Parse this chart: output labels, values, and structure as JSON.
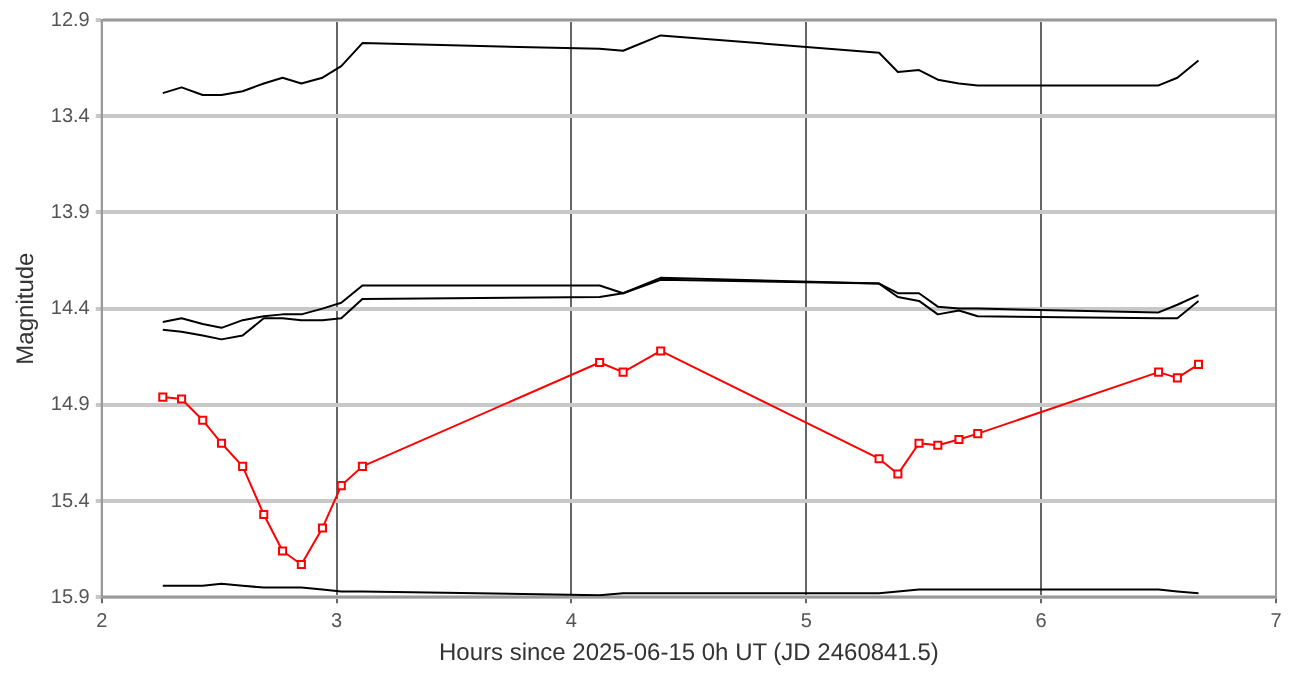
{
  "chart_data": {
    "type": "line",
    "xlabel": "Hours since 2025-06-15 0h UT (JD 2460841.5)",
    "ylabel": "Magnitude",
    "x": [
      2.26,
      2.34,
      2.43,
      2.51,
      2.6,
      2.69,
      2.77,
      2.85,
      2.94,
      3.02,
      3.11,
      4.12,
      4.22,
      4.38,
      5.31,
      5.39,
      5.48,
      5.56,
      5.65,
      5.73,
      6.5,
      6.58,
      6.67
    ],
    "series": [
      {
        "color": "#000000",
        "marker": "none",
        "values": [
          13.28,
          13.25,
          13.29,
          13.29,
          13.27,
          13.23,
          13.2,
          13.23,
          13.2,
          13.14,
          13.02,
          13.05,
          13.06,
          12.98,
          13.07,
          13.17,
          13.16,
          13.21,
          13.23,
          13.24,
          13.24,
          13.2,
          13.11
        ]
      },
      {
        "color": "#000000",
        "marker": "none",
        "values": [
          14.47,
          14.45,
          14.48,
          14.5,
          14.46,
          14.44,
          14.43,
          14.43,
          14.4,
          14.37,
          14.28,
          14.28,
          14.32,
          14.24,
          14.27,
          14.32,
          14.32,
          14.39,
          14.4,
          14.4,
          14.42,
          14.38,
          14.33
        ]
      },
      {
        "color": "#000000",
        "marker": "none",
        "values": [
          14.51,
          14.52,
          14.54,
          14.56,
          14.54,
          14.45,
          14.45,
          14.46,
          14.46,
          14.45,
          14.35,
          14.34,
          14.32,
          14.25,
          14.27,
          14.34,
          14.36,
          14.43,
          14.41,
          14.44,
          14.45,
          14.45,
          14.36
        ]
      },
      {
        "color": "#ff0000",
        "marker": "square",
        "values": [
          14.86,
          14.87,
          14.98,
          15.1,
          15.22,
          15.47,
          15.66,
          15.73,
          15.54,
          15.32,
          15.22,
          14.68,
          14.73,
          14.62,
          15.18,
          15.26,
          15.1,
          15.11,
          15.08,
          15.05,
          14.73,
          14.76,
          14.69
        ]
      },
      {
        "color": "#000000",
        "marker": "none",
        "values": [
          15.84,
          15.84,
          15.84,
          15.83,
          15.84,
          15.85,
          15.85,
          15.85,
          15.86,
          15.87,
          15.87,
          15.89,
          15.88,
          15.88,
          15.88,
          15.87,
          15.86,
          15.86,
          15.86,
          15.86,
          15.86,
          15.87,
          15.88
        ]
      }
    ],
    "xlim": [
      2,
      7
    ],
    "xticks": [
      2,
      3,
      4,
      5,
      6,
      7
    ],
    "ylim": [
      15.9,
      12.9
    ],
    "yticks": [
      12.9,
      13.4,
      13.9,
      14.4,
      14.9,
      15.4,
      15.9
    ],
    "grid": true,
    "legend": false,
    "line_style": "solid"
  }
}
